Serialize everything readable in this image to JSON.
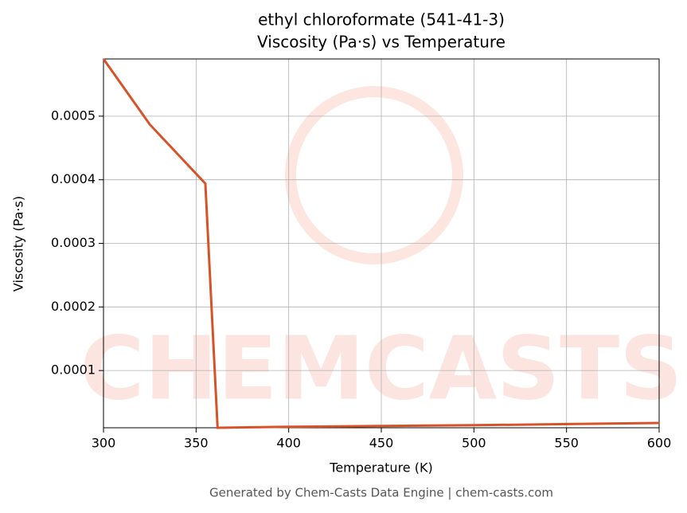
{
  "chart_data": {
    "type": "line",
    "title": "ethyl chloroformate (541-41-3)",
    "subtitle": "Viscosity (Pa·s) vs Temperature",
    "x_label": "Temperature (K)",
    "y_label": "Viscosity (Pa·s)",
    "watermark": "CHEMCASTS",
    "footer": "Generated by Chem-Casts Data Engine | chem-casts.com",
    "x": [
      300,
      325,
      355,
      361.6,
      400,
      450,
      500,
      550,
      600
    ],
    "series": [
      {
        "name": "Viscosity",
        "color": "#d6532a",
        "values": [
          0.00059,
          0.000487,
          0.000394,
          1e-05,
          1.15e-05,
          1.28e-05,
          1.4e-05,
          1.58e-05,
          1.75e-05
        ]
      }
    ],
    "xlim": [
      300,
      600
    ],
    "xticks": [
      300,
      350,
      400,
      450,
      500,
      550,
      600
    ],
    "ylim": [
      1e-05,
      0.00059
    ],
    "yticks": [
      0.0001,
      0.0002,
      0.0003,
      0.0004,
      0.0005
    ],
    "grid": true
  }
}
